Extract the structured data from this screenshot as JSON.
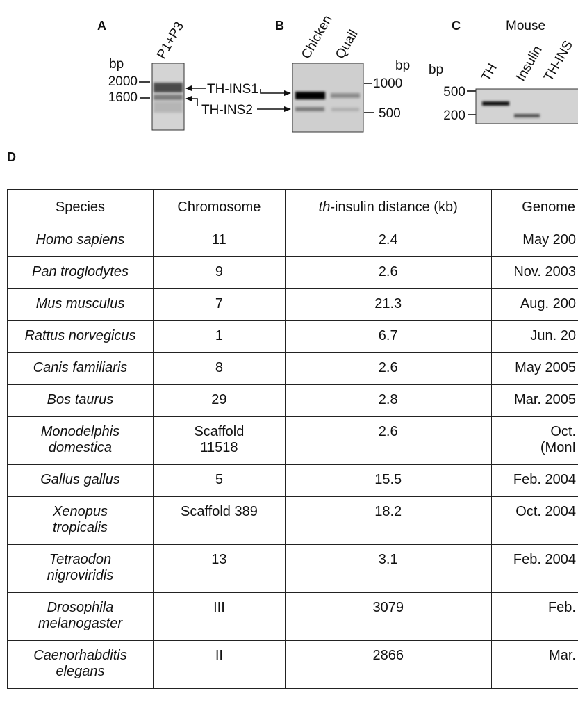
{
  "panels": {
    "A": {
      "label": "A",
      "lanes": [
        "P1+P3"
      ],
      "unit": "bp",
      "markers": [
        "2000",
        "1600"
      ],
      "bands": [
        "TH-INS1",
        "TH-INS2"
      ]
    },
    "B": {
      "label": "B",
      "lanes": [
        "Chicken",
        "Quail"
      ],
      "unit": "bp",
      "markers": [
        "1000",
        "500"
      ]
    },
    "C": {
      "label": "C",
      "group": "Mouse",
      "lanes": [
        "TH",
        "Insulin",
        "TH-INS"
      ],
      "unit": "bp",
      "markers": [
        "500",
        "200"
      ]
    },
    "D": {
      "label": "D"
    }
  },
  "table": {
    "header": [
      "Species",
      "Chromosome",
      {
        "italic": "th",
        "text": "-insulin distance (kb)"
      },
      "Genome"
    ],
    "rows": [
      [
        "Homo sapiens",
        "11",
        "2.4",
        "May 200"
      ],
      [
        "Pan troglodytes",
        "9",
        "2.6",
        "Nov. 2003"
      ],
      [
        "Mus musculus",
        "7",
        "21.3",
        "Aug. 200"
      ],
      [
        "Rattus norvegicus",
        "1",
        "6.7",
        "Jun. 20"
      ],
      [
        "Canis familiaris",
        "8",
        "2.6",
        "May 2005"
      ],
      [
        "Bos taurus",
        "29",
        "2.8",
        "Mar. 2005"
      ],
      [
        "Monodelphis domestica",
        "Scaffold 11518",
        "2.6",
        [
          "Oct.",
          "(MonI"
        ]
      ],
      [
        "Gallus gallus",
        "5",
        "15.5",
        "Feb. 2004"
      ],
      [
        "Xenopus tropicalis",
        "Scaffold 389",
        "18.2",
        "Oct. 2004"
      ],
      [
        "Tetraodon nigroviridis",
        "13",
        "3.1",
        "Feb. 2004"
      ],
      [
        "Drosophila melanogaster",
        "III",
        "3079",
        "Feb."
      ],
      [
        "Caenorhabditis elegans",
        "II",
        "2866",
        "Mar."
      ]
    ]
  }
}
